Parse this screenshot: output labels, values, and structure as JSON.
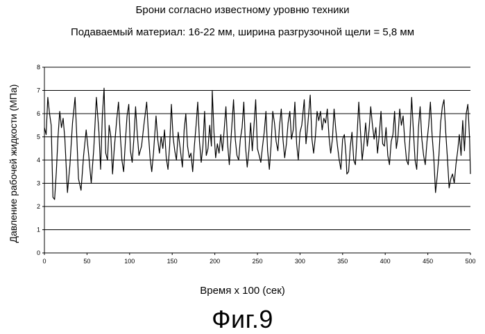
{
  "chart_data": {
    "type": "line",
    "title": "Брони согласно известному уровню техники",
    "subtitle": "Подаваемый материал: 16-22 мм, ширина разгрузочной щели = 5,8 мм",
    "xlabel": "Время x 100 (сек)",
    "ylabel": "Давление рабочей жидкости (МПа)",
    "xlim": [
      0,
      500
    ],
    "ylim": [
      0,
      8
    ],
    "xticks": [
      0,
      50,
      100,
      150,
      200,
      250,
      300,
      350,
      400,
      450,
      500
    ],
    "yticks": [
      0,
      1,
      2,
      3,
      4,
      5,
      6,
      7,
      8
    ],
    "grid": "horizontal",
    "series": [
      {
        "values": [
          [
            0,
            5.4
          ],
          [
            2,
            5.1
          ],
          [
            4,
            6.7
          ],
          [
            6,
            6.0
          ],
          [
            8,
            5.5
          ],
          [
            10,
            2.4
          ],
          [
            12,
            2.3
          ],
          [
            14,
            3.5
          ],
          [
            16,
            5.0
          ],
          [
            18,
            6.1
          ],
          [
            20,
            5.4
          ],
          [
            22,
            5.8
          ],
          [
            24,
            4.9
          ],
          [
            27,
            2.6
          ],
          [
            30,
            3.8
          ],
          [
            33,
            5.6
          ],
          [
            36,
            6.7
          ],
          [
            38,
            5.0
          ],
          [
            40,
            3.2
          ],
          [
            43,
            2.7
          ],
          [
            46,
            4.2
          ],
          [
            49,
            5.3
          ],
          [
            52,
            4.2
          ],
          [
            55,
            3.0
          ],
          [
            58,
            4.5
          ],
          [
            61,
            6.7
          ],
          [
            64,
            5.2
          ],
          [
            66,
            3.6
          ],
          [
            68,
            5.9
          ],
          [
            70,
            7.1
          ],
          [
            72,
            4.3
          ],
          [
            74,
            4.0
          ],
          [
            76,
            5.5
          ],
          [
            78,
            5.0
          ],
          [
            80,
            3.4
          ],
          [
            82,
            4.5
          ],
          [
            85,
            5.8
          ],
          [
            87,
            6.5
          ],
          [
            89,
            5.1
          ],
          [
            91,
            4.0
          ],
          [
            93,
            3.5
          ],
          [
            95,
            4.8
          ],
          [
            97,
            5.9
          ],
          [
            99,
            6.4
          ],
          [
            101,
            4.4
          ],
          [
            103,
            3.9
          ],
          [
            105,
            4.9
          ],
          [
            107,
            6.3
          ],
          [
            109,
            5.1
          ],
          [
            111,
            4.2
          ],
          [
            114,
            4.6
          ],
          [
            117,
            5.6
          ],
          [
            120,
            6.5
          ],
          [
            122,
            5.2
          ],
          [
            124,
            4.1
          ],
          [
            126,
            3.5
          ],
          [
            128,
            4.3
          ],
          [
            131,
            5.9
          ],
          [
            133,
            4.9
          ],
          [
            135,
            4.3
          ],
          [
            137,
            5.0
          ],
          [
            139,
            4.5
          ],
          [
            141,
            5.3
          ],
          [
            143,
            4.1
          ],
          [
            145,
            3.6
          ],
          [
            147,
            4.6
          ],
          [
            149,
            6.4
          ],
          [
            151,
            5.0
          ],
          [
            153,
            4.4
          ],
          [
            155,
            4.0
          ],
          [
            157,
            5.2
          ],
          [
            159,
            4.6
          ],
          [
            162,
            3.7
          ],
          [
            164,
            5.3
          ],
          [
            166,
            6.0
          ],
          [
            168,
            4.6
          ],
          [
            170,
            4.1
          ],
          [
            172,
            4.3
          ],
          [
            174,
            3.5
          ],
          [
            176,
            4.6
          ],
          [
            178,
            5.5
          ],
          [
            180,
            6.5
          ],
          [
            182,
            4.8
          ],
          [
            184,
            3.9
          ],
          [
            186,
            4.6
          ],
          [
            188,
            6.1
          ],
          [
            190,
            4.2
          ],
          [
            192,
            4.5
          ],
          [
            194,
            5.5
          ],
          [
            196,
            4.6
          ],
          [
            197,
            7.0
          ],
          [
            199,
            5.2
          ],
          [
            201,
            4.1
          ],
          [
            203,
            4.7
          ],
          [
            205,
            4.3
          ],
          [
            207,
            5.1
          ],
          [
            209,
            4.4
          ],
          [
            211,
            5.3
          ],
          [
            213,
            6.3
          ],
          [
            215,
            4.7
          ],
          [
            217,
            3.8
          ],
          [
            219,
            4.9
          ],
          [
            222,
            6.6
          ],
          [
            224,
            4.9
          ],
          [
            226,
            4.2
          ],
          [
            228,
            4.0
          ],
          [
            230,
            4.9
          ],
          [
            232,
            5.4
          ],
          [
            234,
            6.5
          ],
          [
            236,
            4.6
          ],
          [
            238,
            3.7
          ],
          [
            240,
            4.4
          ],
          [
            242,
            5.6
          ],
          [
            244,
            4.4
          ],
          [
            246,
            5.5
          ],
          [
            248,
            6.6
          ],
          [
            250,
            4.5
          ],
          [
            252,
            4.2
          ],
          [
            254,
            3.9
          ],
          [
            256,
            4.6
          ],
          [
            258,
            5.2
          ],
          [
            260,
            6.1
          ],
          [
            262,
            4.4
          ],
          [
            264,
            3.6
          ],
          [
            266,
            4.6
          ],
          [
            268,
            6.1
          ],
          [
            270,
            5.6
          ],
          [
            272,
            4.8
          ],
          [
            274,
            4.4
          ],
          [
            276,
            5.5
          ],
          [
            278,
            6.2
          ],
          [
            280,
            4.9
          ],
          [
            282,
            4.1
          ],
          [
            284,
            4.7
          ],
          [
            286,
            5.6
          ],
          [
            288,
            6.1
          ],
          [
            290,
            4.9
          ],
          [
            292,
            5.3
          ],
          [
            294,
            6.5
          ],
          [
            296,
            4.7
          ],
          [
            298,
            4.0
          ],
          [
            300,
            5.2
          ],
          [
            302,
            5.5
          ],
          [
            305,
            6.6
          ],
          [
            307,
            4.7
          ],
          [
            309,
            5.5
          ],
          [
            312,
            6.8
          ],
          [
            314,
            4.9
          ],
          [
            316,
            4.3
          ],
          [
            318,
            5.0
          ],
          [
            320,
            6.1
          ],
          [
            322,
            5.7
          ],
          [
            324,
            6.1
          ],
          [
            326,
            5.3
          ],
          [
            328,
            5.8
          ],
          [
            330,
            5.6
          ],
          [
            332,
            6.2
          ],
          [
            334,
            5.0
          ],
          [
            336,
            4.3
          ],
          [
            338,
            4.9
          ],
          [
            340,
            6.2
          ],
          [
            342,
            5.3
          ],
          [
            344,
            4.6
          ],
          [
            346,
            4.0
          ],
          [
            348,
            3.6
          ],
          [
            350,
            4.9
          ],
          [
            352,
            5.1
          ],
          [
            354,
            4.2
          ],
          [
            355,
            3.4
          ],
          [
            357,
            3.5
          ],
          [
            359,
            4.6
          ],
          [
            361,
            5.2
          ],
          [
            363,
            4.0
          ],
          [
            365,
            3.8
          ],
          [
            367,
            5.1
          ],
          [
            369,
            6.5
          ],
          [
            371,
            5.2
          ],
          [
            373,
            4.0
          ],
          [
            375,
            4.7
          ],
          [
            377,
            5.6
          ],
          [
            379,
            4.6
          ],
          [
            381,
            5.3
          ],
          [
            383,
            6.3
          ],
          [
            385,
            5.5
          ],
          [
            387,
            4.9
          ],
          [
            389,
            5.4
          ],
          [
            391,
            4.3
          ],
          [
            393,
            5.1
          ],
          [
            395,
            6.1
          ],
          [
            397,
            4.7
          ],
          [
            399,
            4.6
          ],
          [
            401,
            5.4
          ],
          [
            403,
            4.2
          ],
          [
            405,
            3.8
          ],
          [
            407,
            4.8
          ],
          [
            409,
            5.1
          ],
          [
            411,
            6.1
          ],
          [
            413,
            4.5
          ],
          [
            415,
            5.0
          ],
          [
            417,
            6.2
          ],
          [
            419,
            5.5
          ],
          [
            421,
            5.9
          ],
          [
            423,
            4.8
          ],
          [
            425,
            4.0
          ],
          [
            427,
            3.8
          ],
          [
            429,
            5.0
          ],
          [
            431,
            6.7
          ],
          [
            433,
            5.3
          ],
          [
            435,
            4.0
          ],
          [
            437,
            3.6
          ],
          [
            439,
            5.4
          ],
          [
            441,
            6.3
          ],
          [
            443,
            4.9
          ],
          [
            445,
            4.2
          ],
          [
            447,
            3.8
          ],
          [
            449,
            4.8
          ],
          [
            451,
            5.5
          ],
          [
            453,
            6.5
          ],
          [
            455,
            5.1
          ],
          [
            457,
            4.1
          ],
          [
            459,
            2.6
          ],
          [
            461,
            3.3
          ],
          [
            463,
            4.2
          ],
          [
            465,
            5.6
          ],
          [
            467,
            6.3
          ],
          [
            469,
            6.6
          ],
          [
            471,
            5.2
          ],
          [
            473,
            4.1
          ],
          [
            475,
            2.8
          ],
          [
            477,
            3.2
          ],
          [
            479,
            3.4
          ],
          [
            481,
            3.0
          ],
          [
            483,
            3.8
          ],
          [
            485,
            4.4
          ],
          [
            487,
            5.1
          ],
          [
            489,
            4.2
          ],
          [
            491,
            5.7
          ],
          [
            493,
            4.4
          ],
          [
            495,
            6.0
          ],
          [
            497,
            6.4
          ],
          [
            499,
            4.9
          ],
          [
            500,
            3.4
          ]
        ]
      }
    ]
  },
  "figure_caption": "Фиг.9"
}
